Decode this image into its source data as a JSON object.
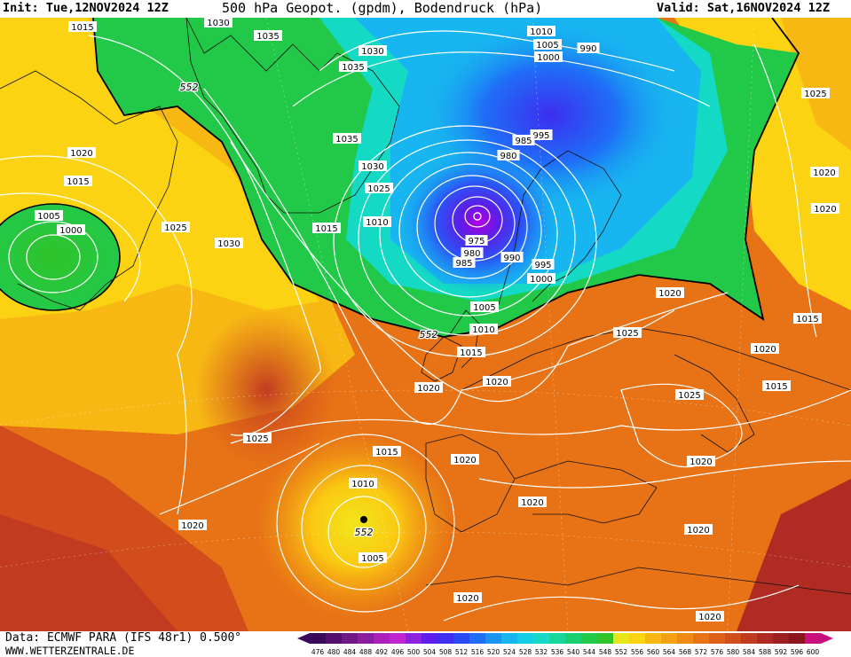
{
  "header": {
    "init": "Init: Tue,12NOV2024 12Z",
    "title": "500 hPa Geopot. (gpdm), Bodendruck (hPa)",
    "valid": "Valid: Sat,16NOV2024 12Z"
  },
  "footer": {
    "source": "Data: ECMWF PARA (IFS 48r1) 0.500°",
    "website": "WWW.WETTERZENTRALE.DE"
  },
  "legend": {
    "values": [
      "476",
      "480",
      "484",
      "488",
      "492",
      "496",
      "500",
      "504",
      "508",
      "512",
      "516",
      "520",
      "524",
      "528",
      "532",
      "536",
      "540",
      "544",
      "548",
      "552",
      "556",
      "560",
      "564",
      "568",
      "572",
      "576",
      "580",
      "584",
      "588",
      "592",
      "596",
      "600"
    ],
    "colors": [
      "#3a0a5a",
      "#55106e",
      "#6f1787",
      "#8b1ca0",
      "#a81fba",
      "#c026d0",
      "#8a22e0",
      "#5c1ee8",
      "#3d2ef0",
      "#2a4af5",
      "#1f6ef7",
      "#1a95f5",
      "#17b6f0",
      "#14cfe6",
      "#14d9c4",
      "#18d69a",
      "#1ccf6e",
      "#22c948",
      "#30c32a",
      "#e8e61a",
      "#fbd312",
      "#f7b814",
      "#f3a014",
      "#ef8a14",
      "#e77316",
      "#df5f18",
      "#d24c1c",
      "#c23b20",
      "#b02c22",
      "#9c1f22",
      "#8a1420",
      "#c8107e"
    ]
  },
  "map": {
    "pressure_labels": [
      "1030",
      "1015",
      "1035",
      "1030",
      "1035",
      "552",
      "1010",
      "1005",
      "1000",
      "990",
      "995",
      "1025",
      "1020",
      "1015",
      "1005",
      "1000",
      "1035",
      "1030",
      "1025",
      "985",
      "980",
      "1020",
      "1015",
      "1010",
      "1025",
      "1030",
      "1020",
      "975",
      "980",
      "985",
      "990",
      "995",
      "1000",
      "1020",
      "1005",
      "1010",
      "1015",
      "1025",
      "1015",
      "1020",
      "552",
      "1020",
      "1025",
      "1025",
      "1020",
      "1015",
      "1020",
      "1020",
      "1010",
      "1005",
      "552",
      "1020",
      "1020",
      "1020",
      "1020",
      "1015",
      "1020"
    ]
  }
}
